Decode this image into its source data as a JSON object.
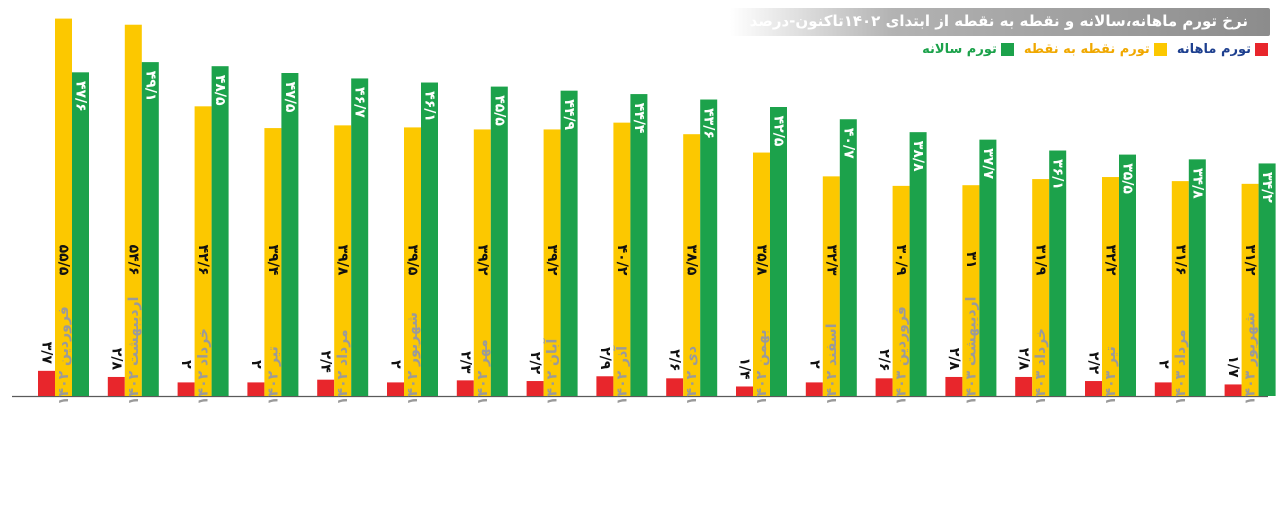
{
  "chart_data": {
    "type": "bar",
    "title": "نرخ تورم ماهانه،سالانه و نقطه به نقطه از ابتدای ۱۴۰۲تاکنون-درصد",
    "categories": [
      "فروردین ۱۴۰۲",
      "اردیبهشت ۱۴۰۲",
      "خرداد ۱۴۰۲",
      "تیر ۱۴۰۲",
      "مرداد ۱۴۰۲",
      "شهریور ۱۴۰۲",
      "مهر ۱۴۰۲",
      "آبان ۱۴۰۲",
      "آذر ۱۴۰۲",
      "دی ۱۴۰۲",
      "بهمن ۱۴۰۲",
      "اسفند ۱۴۰۲",
      "فروردین ۱۴۰۳",
      "اردیبهشت ۱۴۰۳",
      "خرداد ۱۴۰۳",
      "تیر ۱۴۰۳",
      "مرداد ۱۴۰۳",
      "شهریور ۱۴۰۳"
    ],
    "series": [
      {
        "name": "تورم ماهانه",
        "color": "#e8262c",
        "values": [
          3.7,
          2.8,
          2,
          2,
          2.4,
          2,
          2.3,
          2.2,
          2.9,
          2.6,
          1.4,
          2,
          2.6,
          2.8,
          2.8,
          2.2,
          2,
          1.7
        ],
        "labels": [
          "۳/۷",
          "۲/۸",
          "۲",
          "۲",
          "۲/۴",
          "۲",
          "۲/۳",
          "۲/۲",
          "۲/۹",
          "۲/۶",
          "۱/۴",
          "۲",
          "۲/۶",
          "۲/۸",
          "۲/۸",
          "۲/۲",
          "۲",
          "۱/۷"
        ]
      },
      {
        "name": "تورم نقطه به نقطه",
        "color": "#fcc800",
        "values": [
          55.5,
          54.6,
          42.6,
          39.4,
          39.8,
          39.5,
          39.2,
          39.2,
          40.2,
          38.5,
          35.8,
          32.3,
          30.9,
          31,
          31.9,
          32.2,
          31.6,
          31.2
        ],
        "labels": [
          "۵۵/۵",
          "۵۴/۶",
          "۴۲/۶",
          "۳۹/۴",
          "۳۹/۸",
          "۳۹/۵",
          "۳۹/۲",
          "۳۹/۲",
          "۴۰/۲",
          "۳۸/۵",
          "۳۵/۸",
          "۳۲/۳",
          "۳۰/۹",
          "۳۱",
          "۳۱/۹",
          "۳۲/۲",
          "۳۱/۶",
          "۳۱/۲"
        ]
      },
      {
        "name": "تورم سالانه",
        "color": "#1ca24b",
        "values": [
          47.6,
          49.1,
          48.5,
          47.5,
          46.7,
          46.1,
          45.5,
          44.9,
          44.4,
          43.6,
          42.5,
          40.7,
          38.8,
          37.7,
          36.1,
          35.5,
          34.8,
          34.2
        ],
        "labels": [
          "۴۷/۶",
          "۴۹/۱",
          "۴۸/۵",
          "۴۷/۵",
          "۴۶/۷",
          "۴۶/۱",
          "۴۵/۵",
          "۴۴/۹",
          "۴۴/۴",
          "۴۳/۶",
          "۴۲/۵",
          "۴۰/۷",
          "۳۸/۸",
          "۳۷/۷",
          "۳۶/۱",
          "۳۵/۵",
          "۳۴/۸",
          "۳۴/۲"
        ]
      }
    ],
    "legend_position": "top-right",
    "grid": false
  }
}
